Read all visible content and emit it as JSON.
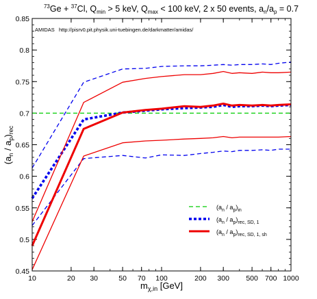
{
  "chart_data": {
    "type": "line",
    "title": {
      "ge_mass": "73",
      "ge": "Ge + ",
      "cl_mass": "37",
      "cl": "Cl, Q",
      "qmin_sub": "min",
      "qmin_rest": " > 5 keV, Q",
      "qmax_sub": "max",
      "qmax_rest": " < 100 keV, 2 x 50 events, a",
      "an_sub": "n",
      "slash": "/a",
      "ap_sub": "p",
      "end": " = 0.7"
    },
    "annotation": "AMIDAS   http://pisrv0.pit.physik.uni-tuebingen.de/darkmatter/amidas/",
    "xlabel": {
      "main": "m",
      "sub": "χ,in",
      "unit": " [GeV]"
    },
    "ylabel": {
      "p1": "(a",
      "s1": "n",
      "p2": " / a",
      "s2": "p",
      "p3": ")",
      "s3": "rec"
    },
    "xscale": "log",
    "xlim": [
      10,
      1000
    ],
    "ylim": [
      0.45,
      0.85
    ],
    "x_ticks": [
      10,
      20,
      30,
      50,
      70,
      100,
      200,
      300,
      500,
      700,
      1000
    ],
    "x_tick_labels": [
      "10",
      "20",
      "30",
      "50",
      "70",
      "100",
      "200",
      "300",
      "500",
      "700",
      "1000"
    ],
    "y_ticks": [
      0.45,
      0.5,
      0.55,
      0.6,
      0.65,
      0.7,
      0.75,
      0.8,
      0.85
    ],
    "y_tick_labels": [
      "0.45",
      "0.5",
      "0.55",
      "0.6",
      "0.65",
      "0.7",
      "0.75",
      "0.8",
      "0.85"
    ],
    "x": [
      10,
      25,
      50,
      75,
      100,
      150,
      200,
      250,
      300,
      350,
      400,
      500,
      600,
      700,
      800,
      1000
    ],
    "series": [
      {
        "key": "input",
        "color": "#00cc00",
        "style": "dashed-thin",
        "y": [
          0.7,
          0.7,
          0.7,
          0.7,
          0.7,
          0.7,
          0.7,
          0.7,
          0.7,
          0.7,
          0.7,
          0.7,
          0.7,
          0.7,
          0.7,
          0.7
        ]
      },
      {
        "key": "sd1_upper",
        "color": "#0000ee",
        "style": "dashed-thin",
        "y": [
          0.613,
          0.749,
          0.77,
          0.771,
          0.774,
          0.775,
          0.775,
          0.776,
          0.777,
          0.776,
          0.777,
          0.777,
          0.778,
          0.777,
          0.779,
          0.781
        ]
      },
      {
        "key": "sd1",
        "color": "#0000ee",
        "style": "dotted-thick",
        "y": [
          0.565,
          0.69,
          0.701,
          0.704,
          0.706,
          0.708,
          0.709,
          0.71,
          0.713,
          0.71,
          0.711,
          0.711,
          0.712,
          0.711,
          0.712,
          0.713
        ]
      },
      {
        "key": "sd1_lower",
        "color": "#0000ee",
        "style": "dashed-thin",
        "y": [
          0.522,
          0.628,
          0.633,
          0.629,
          0.634,
          0.633,
          0.636,
          0.638,
          0.64,
          0.639,
          0.641,
          0.641,
          0.642,
          0.641,
          0.643,
          0.643
        ]
      },
      {
        "key": "sh_upper",
        "color": "#ee0000",
        "style": "solid-thin",
        "y": [
          0.528,
          0.717,
          0.749,
          0.755,
          0.758,
          0.761,
          0.761,
          0.763,
          0.766,
          0.763,
          0.764,
          0.763,
          0.765,
          0.764,
          0.764,
          0.765
        ]
      },
      {
        "key": "sh",
        "color": "#ee0000",
        "style": "solid-thick",
        "y": [
          0.49,
          0.675,
          0.701,
          0.705,
          0.707,
          0.711,
          0.71,
          0.712,
          0.715,
          0.712,
          0.713,
          0.712,
          0.713,
          0.712,
          0.713,
          0.714
        ]
      },
      {
        "key": "sh_lower",
        "color": "#ee0000",
        "style": "solid-thin",
        "y": [
          0.452,
          0.632,
          0.653,
          0.656,
          0.657,
          0.659,
          0.66,
          0.661,
          0.663,
          0.661,
          0.662,
          0.662,
          0.662,
          0.662,
          0.662,
          0.663
        ]
      }
    ],
    "legend": {
      "placement": "lower-right",
      "entries": [
        {
          "key": "input",
          "color": "#00cc00",
          "style": "dashed-thin",
          "p1": "(a",
          "s1": "n",
          "p2": " / a",
          "s2": "p",
          "p3": ")",
          "s3": "in"
        },
        {
          "key": "sd1",
          "color": "#0000ee",
          "style": "dotted-thick",
          "p1": "(a",
          "s1": "n",
          "p2": " / a",
          "s2": "p",
          "p3": ")",
          "s3": "rec, SD, 1"
        },
        {
          "key": "sh",
          "color": "#ee0000",
          "style": "solid-thick",
          "p1": "(a",
          "s1": "n",
          "p2": " / a",
          "s2": "p",
          "p3": ")",
          "s3": "rec, SD, 1, sh"
        }
      ]
    }
  }
}
